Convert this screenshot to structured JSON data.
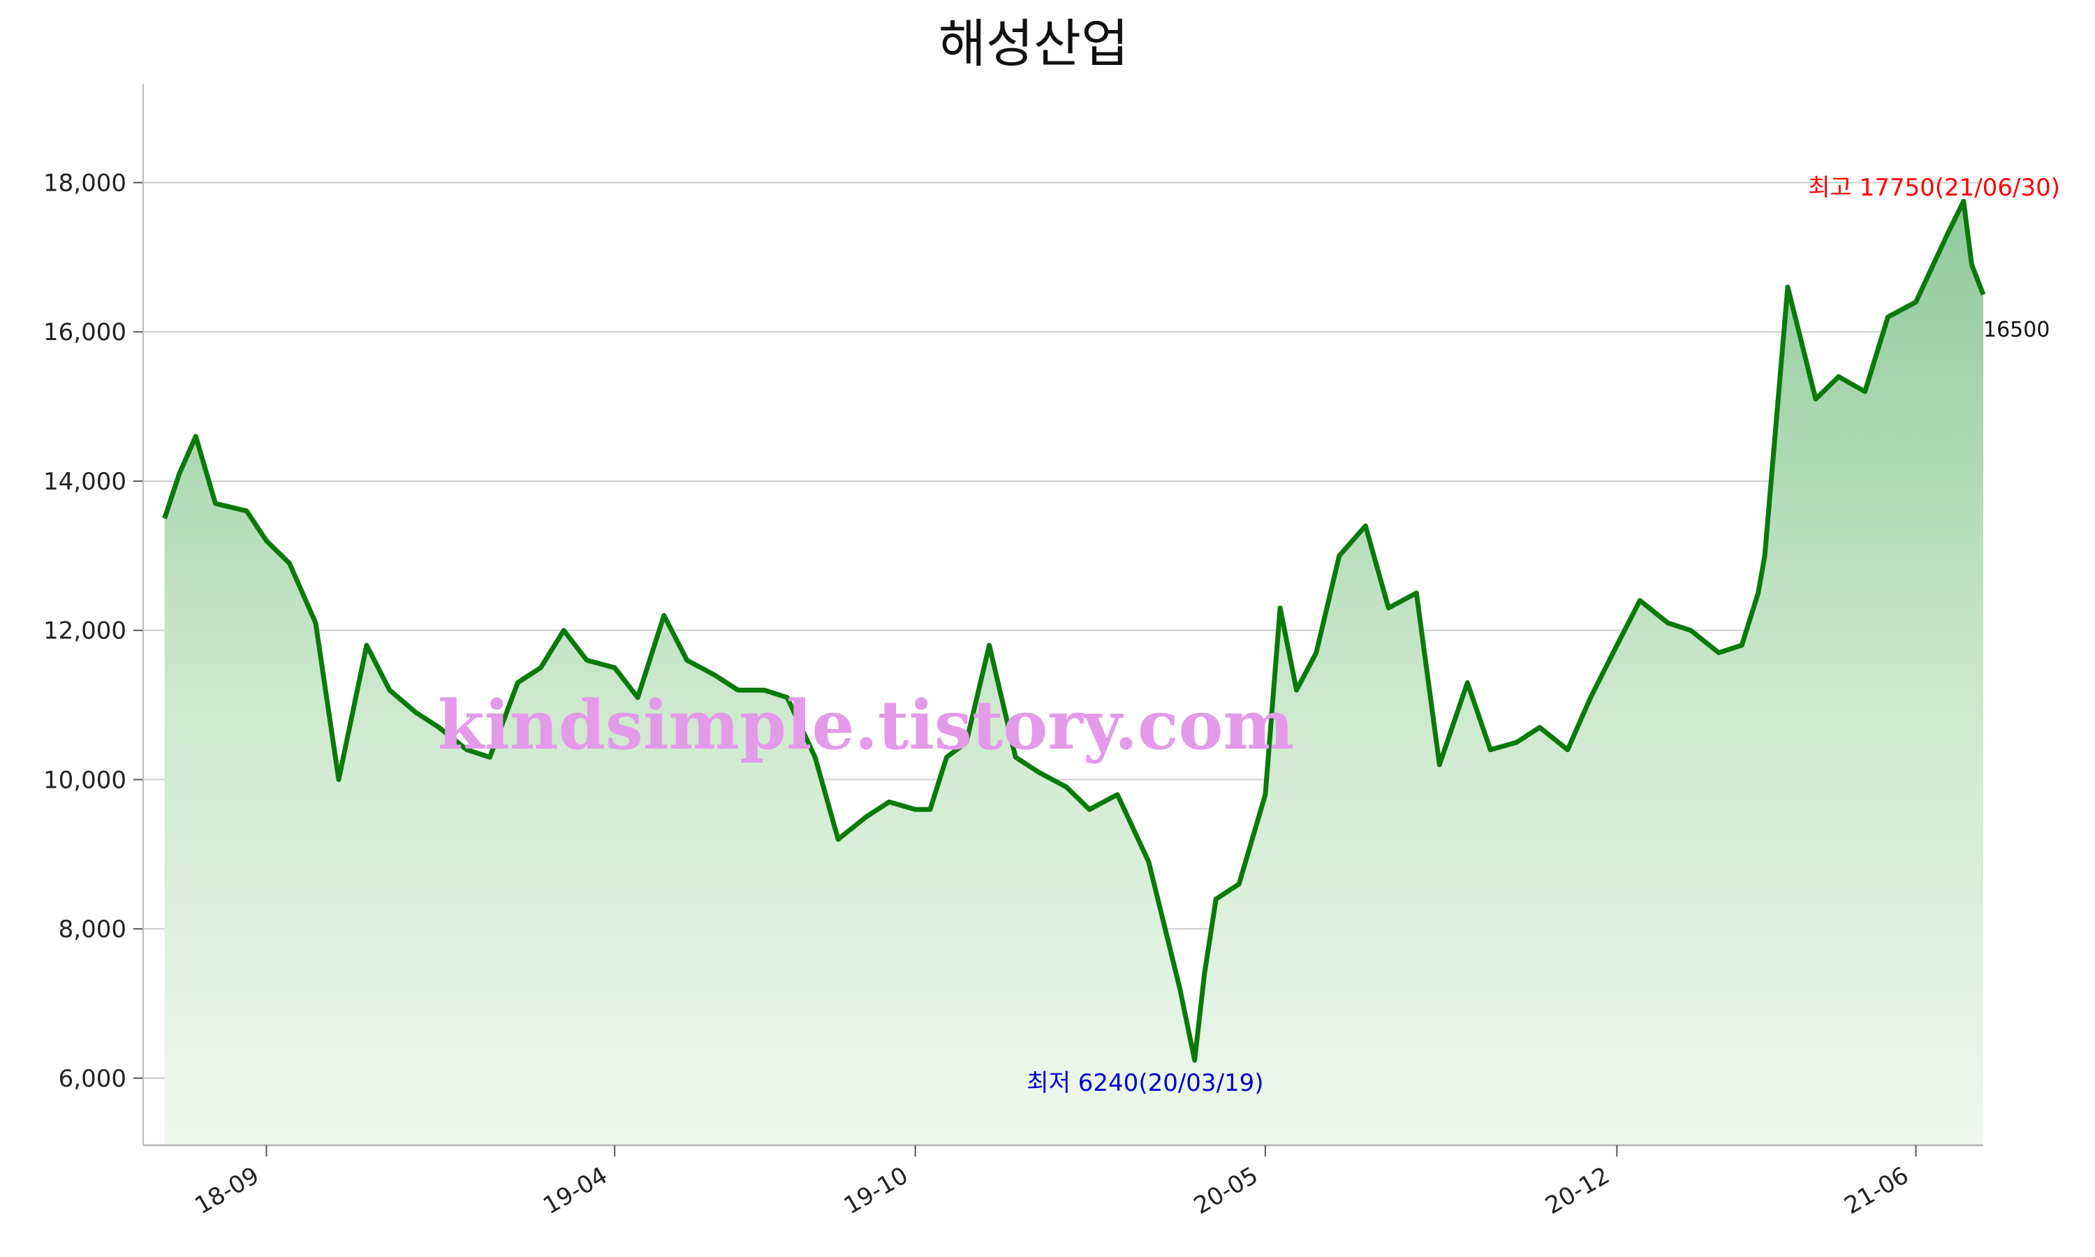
{
  "chart_data": {
    "type": "area",
    "title": "해성산업",
    "xlabel": "",
    "ylabel": "",
    "ylim": [
      5100,
      18950
    ],
    "yticks": [
      6000,
      8000,
      10000,
      12000,
      14000,
      16000,
      18000
    ],
    "ytick_labels": [
      "6,000",
      "8,000",
      "10,000",
      "12,000",
      "14,000",
      "16,000",
      "18,000"
    ],
    "xticks": [
      "18-09",
      "19-04",
      "19-10",
      "20-05",
      "20-12",
      "21-06"
    ],
    "grid": true,
    "colors": {
      "line": "#0a7a0a",
      "fill_top": "#8fc99b",
      "fill_bottom": "#eef8ee",
      "grid": "#cccccc",
      "high": "#ff0000",
      "low": "#0000cc"
    },
    "series": [
      {
        "x": [
          "2018-07",
          "2018-07-10",
          "2018-07-20",
          "2018-08",
          "2018-08-20",
          "2018-09",
          "2018-09-15",
          "2018-10",
          "2018-10-15",
          "2018-11",
          "2018-11-15",
          "2018-12",
          "2018-12-15",
          "2019-01",
          "2019-01-15",
          "2019-02",
          "2019-02-15",
          "2019-03",
          "2019-03-15",
          "2019-04",
          "2019-04-15",
          "2019-05",
          "2019-05-15",
          "2019-06",
          "2019-06-15",
          "2019-07",
          "2019-07-15",
          "2019-08",
          "2019-08-15",
          "2019-09",
          "2019-09-15",
          "2019-10",
          "2019-10-10",
          "2019-10-20",
          "2019-11",
          "2019-11-15",
          "2019-12",
          "2019-12-15",
          "2020-01",
          "2020-01-15",
          "2020-02",
          "2020-02-20",
          "2020-03-10",
          "2020-03-19",
          "2020-03-25",
          "2020-04",
          "2020-04-15",
          "2020-05",
          "2020-05-10",
          "2020-05-20",
          "2020-06",
          "2020-06-15",
          "2020-07",
          "2020-07-15",
          "2020-08",
          "2020-08-15",
          "2020-09",
          "2020-09-15",
          "2020-10",
          "2020-10-15",
          "2020-11",
          "2020-11-15",
          "2020-12",
          "2020-12-15",
          "2021-01",
          "2021-01-15",
          "2021-02",
          "2021-02-15",
          "2021-02-25",
          "2021-03",
          "2021-03-15",
          "2021-04",
          "2021-04-15",
          "2021-05",
          "2021-05-15",
          "2021-06",
          "2021-06-20",
          "2021-06-30",
          "2021-07-05",
          "2021-07-12"
        ],
        "values": [
          13500,
          14100,
          14600,
          13700,
          13600,
          13200,
          12900,
          12100,
          10000,
          11800,
          11200,
          10900,
          10700,
          10400,
          10300,
          11300,
          11500,
          12000,
          11600,
          11500,
          11100,
          12200,
          11600,
          11400,
          11200,
          11200,
          11100,
          10300,
          9200,
          9500,
          9700,
          9600,
          9600,
          10300,
          10500,
          11800,
          10300,
          10100,
          9900,
          9600,
          9800,
          8900,
          7200,
          6240,
          7400,
          8400,
          8600,
          9800,
          12300,
          11200,
          11700,
          13000,
          13400,
          12300,
          12500,
          10200,
          11300,
          10400,
          10500,
          10700,
          10400,
          11100,
          11800,
          12400,
          12100,
          12000,
          11700,
          11800,
          12500,
          13000,
          16600,
          15100,
          15400,
          15200,
          16200,
          16400,
          17300,
          17750,
          16900,
          16500
        ]
      }
    ],
    "annotations": {
      "high": "최고 17750(21/06/30)",
      "low": "최저 6240(20/03/19)",
      "last": "16500"
    },
    "watermark": "kindsimple.tistory.com"
  }
}
